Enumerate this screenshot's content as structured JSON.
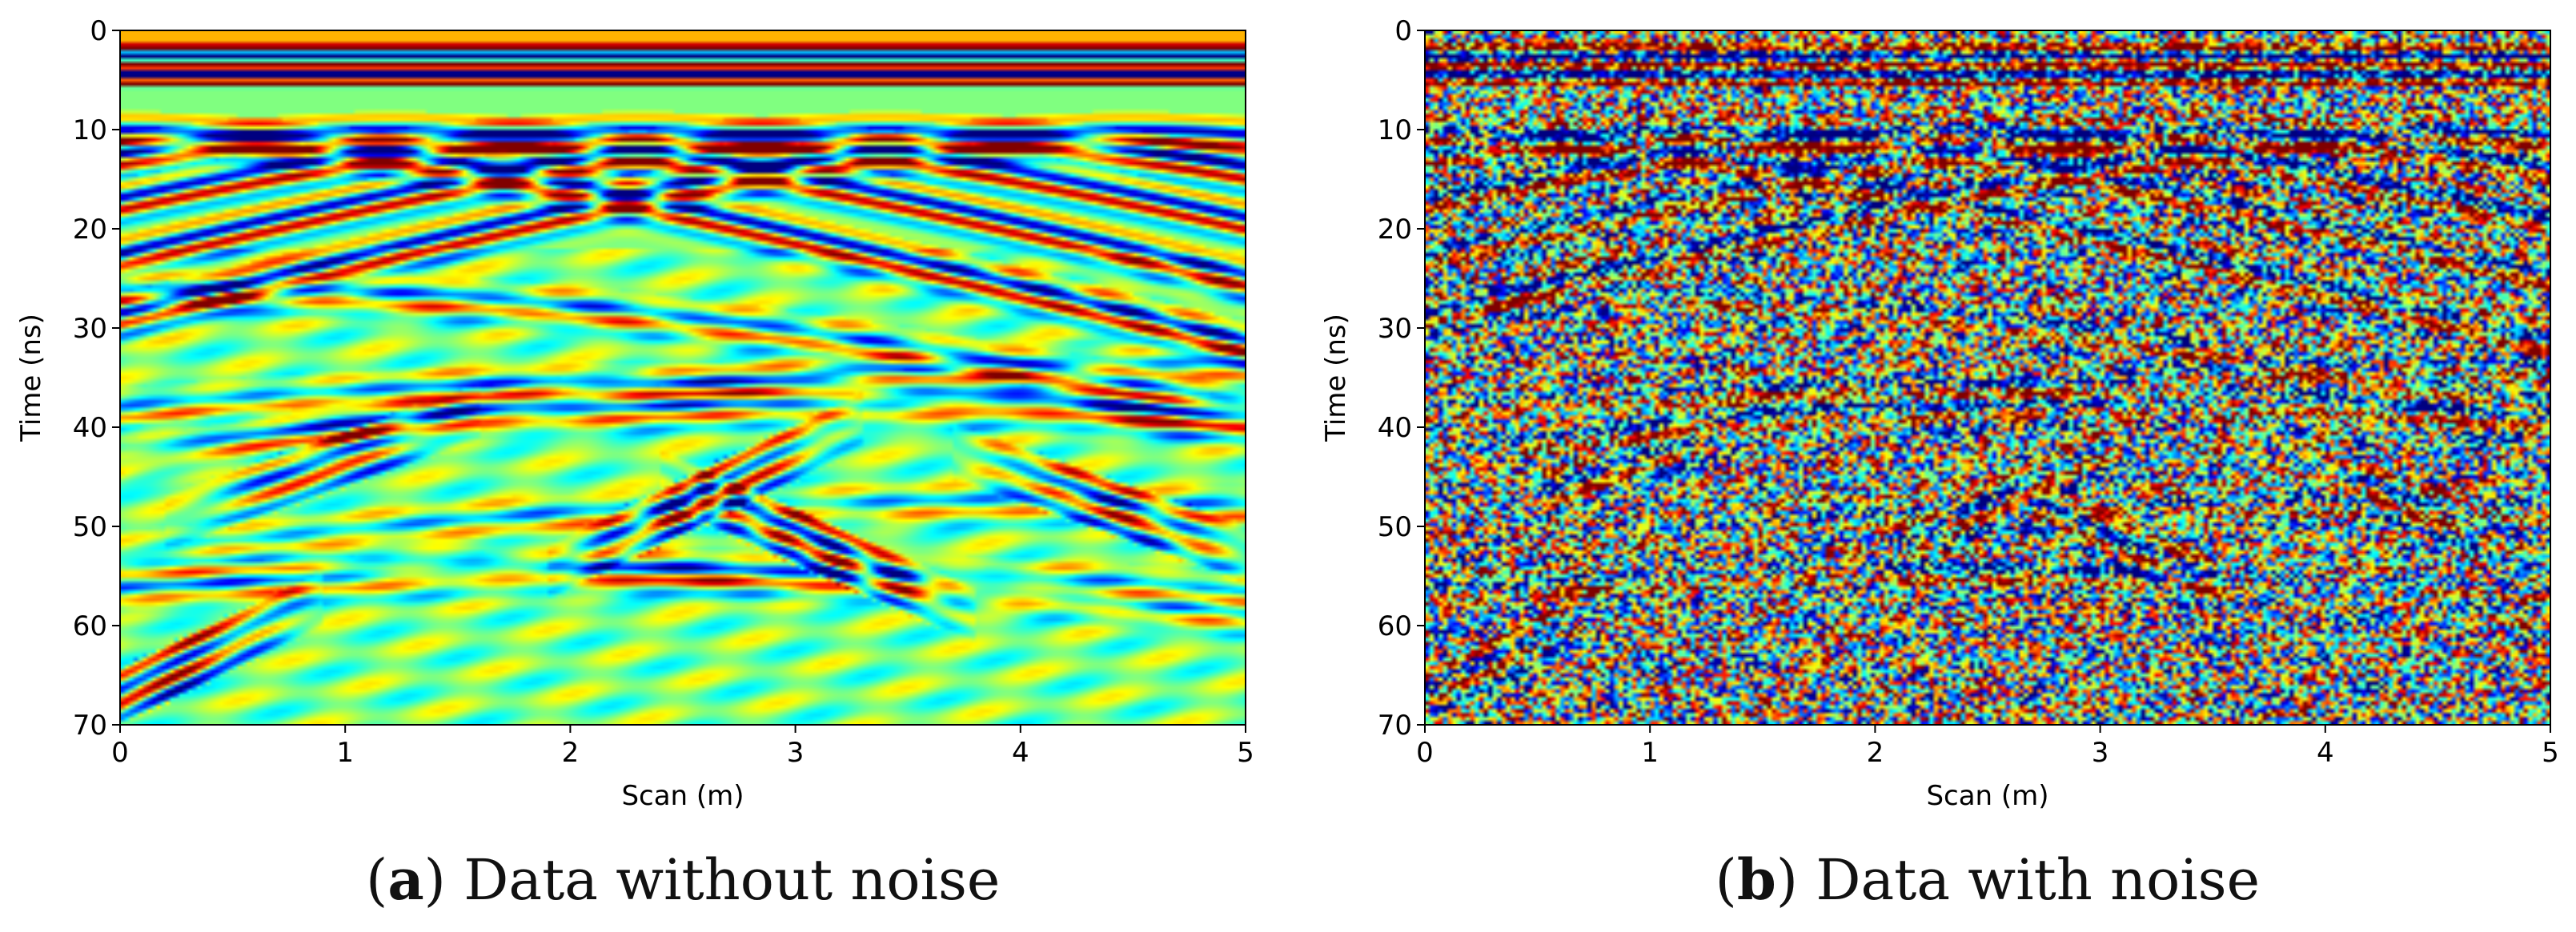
{
  "colors": {
    "background": "#ffffff",
    "axis": "#000000"
  },
  "chart_data": [
    {
      "type": "heatmap",
      "panel_letter": "a",
      "caption": "Data without noise",
      "xlabel": "Scan (m)",
      "ylabel": "Time (ns)",
      "xlim": [
        0,
        5
      ],
      "ylim": [
        70,
        0
      ],
      "xticks": [
        "0",
        "1",
        "2",
        "3",
        "4",
        "5"
      ],
      "yticks": [
        "0",
        "10",
        "20",
        "30",
        "40",
        "50",
        "60",
        "70"
      ],
      "noise": false
    },
    {
      "type": "heatmap",
      "panel_letter": "b",
      "caption": "Data with noise",
      "xlabel": "Scan (m)",
      "ylabel": "Time (ns)",
      "xlim": [
        0,
        5
      ],
      "ylim": [
        70,
        0
      ],
      "xticks": [
        "0",
        "1",
        "2",
        "3",
        "4",
        "5"
      ],
      "yticks": [
        "0",
        "10",
        "20",
        "30",
        "40",
        "50",
        "60",
        "70"
      ],
      "noise": true
    }
  ]
}
